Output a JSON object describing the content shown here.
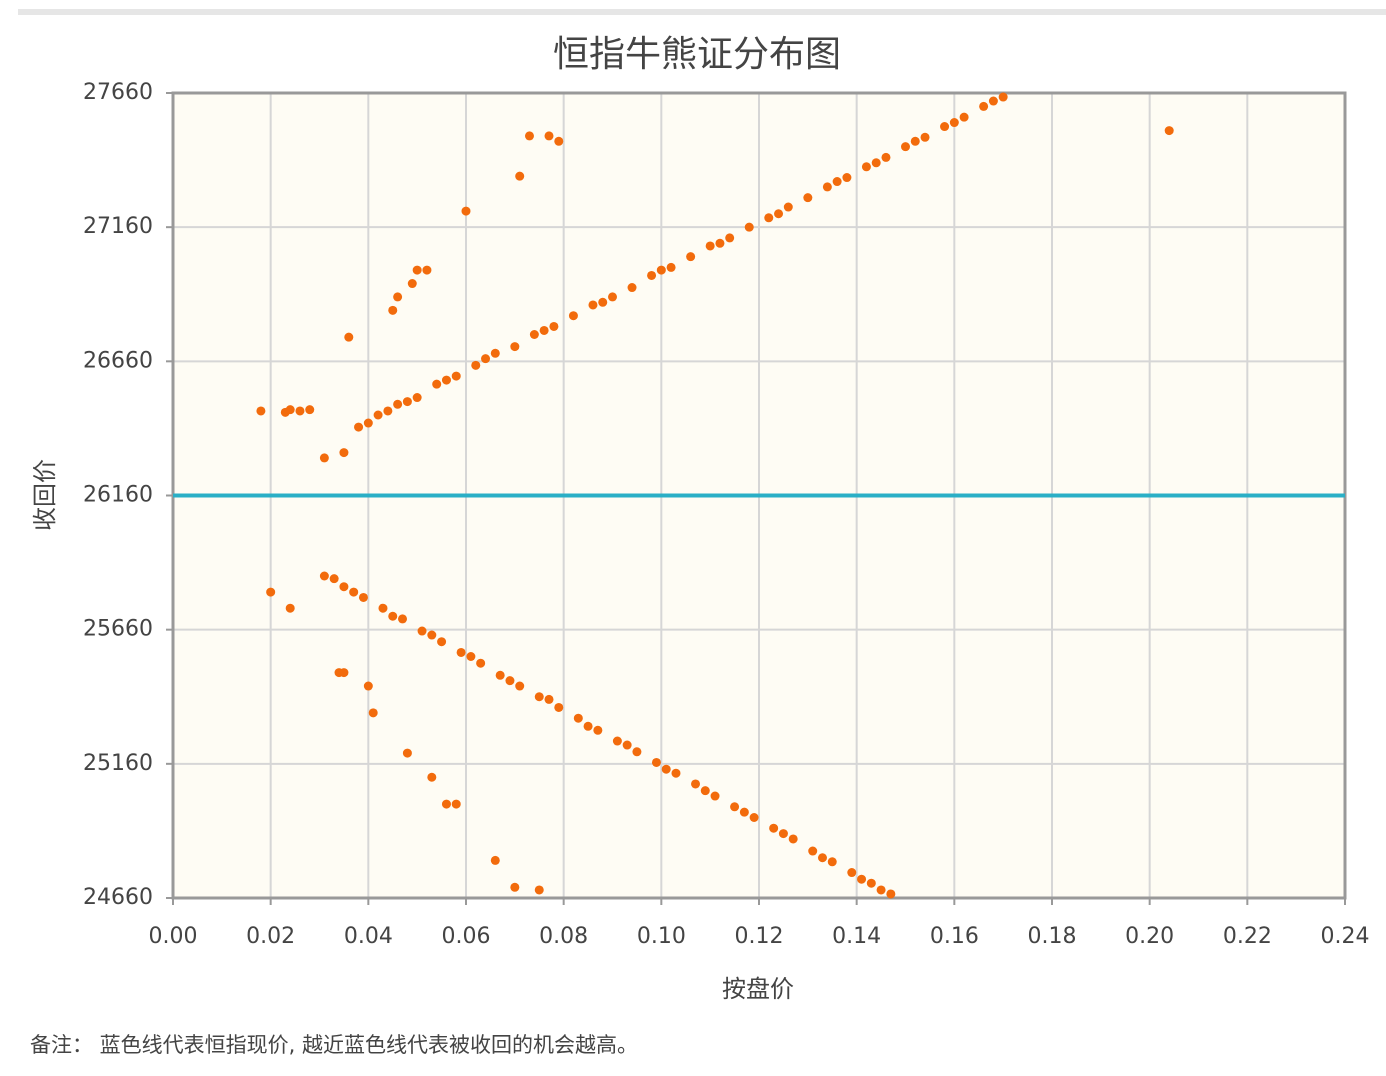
{
  "chart_data": {
    "type": "scatter",
    "title": "恒指牛熊证分布图",
    "x_label": "按盘价",
    "y_label": "收回价",
    "note": "备注： 蓝色线代表恒指现价, 越近蓝色线代表被收回的机会越高。",
    "xlim": [
      0,
      0.24
    ],
    "ylim": [
      24660,
      27660
    ],
    "xticks": [
      {
        "value": 0,
        "label": "0.00"
      },
      0.02,
      0.04,
      0.06,
      0.08,
      {
        "value": 0.1,
        "label": "0.10"
      },
      0.12,
      0.14,
      0.16,
      0.18,
      {
        "value": 0.2,
        "label": "0.20"
      },
      0.22,
      0.24
    ],
    "yticks": [
      24660,
      25160,
      25660,
      26160,
      26660,
      27160,
      27660
    ],
    "grid": true,
    "reference_line": {
      "value": 26160,
      "color": "#2aafc6"
    },
    "series": [
      {
        "color": "#f26b0c",
        "x": [
          0.018,
          0.023,
          0.024,
          0.026,
          0.028,
          0.031,
          0.035,
          0.036,
          0.045,
          0.046,
          0.049,
          0.05,
          0.052,
          0.06,
          0.071,
          0.073,
          0.077,
          0.079,
          0.204,
          0.02,
          0.024,
          0.034,
          0.035,
          0.04,
          0.041,
          0.048,
          0.053,
          0.056,
          0.058,
          0.066,
          0.07,
          0.075,
          0.038,
          0.042,
          0.046,
          0.05,
          0.054,
          0.058,
          0.062,
          0.066,
          0.07,
          0.074,
          0.078,
          0.082,
          0.086,
          0.09,
          0.094,
          0.098,
          0.102,
          0.106,
          0.11,
          0.114,
          0.118,
          0.122,
          0.126,
          0.13,
          0.134,
          0.138,
          0.142,
          0.146,
          0.15,
          0.154,
          0.158,
          0.162,
          0.166,
          0.17,
          0.04,
          0.044,
          0.048,
          0.056,
          0.064,
          0.076,
          0.088,
          0.1,
          0.112,
          0.124,
          0.136,
          0.144,
          0.152,
          0.16,
          0.168,
          0.031,
          0.035,
          0.039,
          0.043,
          0.047,
          0.051,
          0.055,
          0.059,
          0.063,
          0.067,
          0.071,
          0.075,
          0.079,
          0.083,
          0.087,
          0.091,
          0.095,
          0.099,
          0.103,
          0.107,
          0.111,
          0.115,
          0.119,
          0.123,
          0.127,
          0.131,
          0.135,
          0.139,
          0.143,
          0.147,
          0.033,
          0.037,
          0.045,
          0.053,
          0.061,
          0.069,
          0.077,
          0.085,
          0.093,
          0.101,
          0.109,
          0.117,
          0.125,
          0.133,
          0.141,
          0.145
        ],
        "values": [
          26475,
          26470,
          26480,
          26475,
          26480,
          26300,
          26320,
          26750,
          26850,
          26900,
          26950,
          27000,
          27000,
          27220,
          27350,
          27500,
          27500,
          27480,
          27520,
          25800,
          25740,
          25500,
          25500,
          25450,
          25350,
          25200,
          25110,
          25010,
          25010,
          24800,
          24700,
          24690,
          26415,
          26460,
          26500,
          26525,
          26575,
          26605,
          26645,
          26690,
          26715,
          26760,
          26790,
          26830,
          26870,
          26900,
          26935,
          26980,
          27010,
          27050,
          27090,
          27120,
          27160,
          27195,
          27235,
          27270,
          27310,
          27345,
          27385,
          27420,
          27460,
          27495,
          27535,
          27570,
          27610,
          27645,
          26430,
          26475,
          26510,
          26590,
          26670,
          26775,
          26880,
          27000,
          27100,
          27210,
          27330,
          27400,
          27480,
          27550,
          27630,
          25860,
          25820,
          25780,
          25740,
          25700,
          25655,
          25615,
          25575,
          25535,
          25490,
          25450,
          25410,
          25370,
          25330,
          25285,
          25245,
          25205,
          25165,
          25125,
          25085,
          25040,
          25000,
          24960,
          24920,
          24880,
          24835,
          24795,
          24755,
          24715,
          24675,
          25850,
          25800,
          25710,
          25640,
          25560,
          25470,
          25400,
          25300,
          25230,
          25140,
          25060,
          24980,
          24900,
          24810,
          24730,
          24690
        ]
      }
    ]
  }
}
